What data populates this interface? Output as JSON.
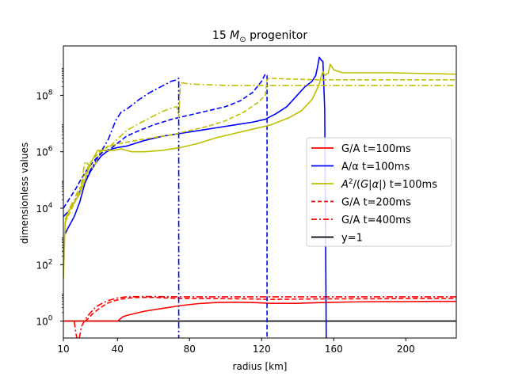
{
  "chart_data": {
    "type": "line",
    "title": "15 M☉ progenitor",
    "title_parts": {
      "prefix": "15 ",
      "italic": "M",
      "subscript": "⊙",
      "suffix": " progenitor"
    },
    "xlabel": "radius [km]",
    "ylabel": "dimensionless values",
    "xlim": [
      10,
      228
    ],
    "ylim_log10": [
      -0.6,
      9.75
    ],
    "yscale": "log",
    "x_ticks": [
      {
        "value": 10,
        "label": "10"
      },
      {
        "value": 40,
        "label": "40"
      },
      {
        "value": 80,
        "label": "80"
      },
      {
        "value": 120,
        "label": "120"
      },
      {
        "value": 160,
        "label": "160"
      },
      {
        "value": 200,
        "label": "200"
      }
    ],
    "y_ticks": [
      {
        "value": 0,
        "base": "10",
        "exp": "0"
      },
      {
        "value": 2,
        "base": "10",
        "exp": "2"
      },
      {
        "value": 4,
        "base": "10",
        "exp": "4"
      },
      {
        "value": 6,
        "base": "10",
        "exp": "6"
      },
      {
        "value": 8,
        "base": "10",
        "exp": "8"
      }
    ],
    "legend_position": "center-right",
    "legend": [
      {
        "label": "G/A t=100ms",
        "color": "#ff0000",
        "dash": "solid"
      },
      {
        "label": "A/α t=100ms",
        "color": "#0000ff",
        "dash": "solid"
      },
      {
        "label": "A²/(G|α|) t=100ms",
        "color": "#bfbf00",
        "dash": "solid",
        "math": true
      },
      {
        "label": "G/A t=200ms",
        "color": "#ff0000",
        "dash": "dashed"
      },
      {
        "label": "G/A t=400ms",
        "color": "#ff0000",
        "dash": "dashdot"
      },
      {
        "label": "y=1",
        "color": "#000000",
        "dash": "solid"
      }
    ],
    "series": [
      {
        "name": "y=1",
        "color": "#000000",
        "dash": "solid",
        "points": [
          [
            10,
            0
          ],
          [
            228,
            0
          ]
        ]
      },
      {
        "name": "G/A t=100ms",
        "color": "#ff0000",
        "dash": "solid",
        "points": [
          [
            10,
            0
          ],
          [
            40,
            0
          ],
          [
            41,
            0.05
          ],
          [
            43,
            0.15
          ],
          [
            45,
            0.2
          ],
          [
            55,
            0.35
          ],
          [
            65,
            0.45
          ],
          [
            75,
            0.55
          ],
          [
            85,
            0.62
          ],
          [
            95,
            0.66
          ],
          [
            105,
            0.67
          ],
          [
            115,
            0.66
          ],
          [
            125,
            0.63
          ],
          [
            140,
            0.63
          ],
          [
            155,
            0.66
          ],
          [
            170,
            0.68
          ],
          [
            185,
            0.69
          ],
          [
            200,
            0.69
          ],
          [
            215,
            0.7
          ],
          [
            228,
            0.7
          ]
        ]
      },
      {
        "name": "G/A t=200ms",
        "color": "#ff0000",
        "dash": "dashed",
        "points": [
          [
            22,
            0
          ],
          [
            24,
            0.1
          ],
          [
            26,
            0.25
          ],
          [
            30,
            0.45
          ],
          [
            34,
            0.62
          ],
          [
            38,
            0.72
          ],
          [
            42,
            0.78
          ],
          [
            47,
            0.82
          ],
          [
            52,
            0.84
          ],
          [
            60,
            0.84
          ],
          [
            75,
            0.8
          ],
          [
            90,
            0.8
          ],
          [
            110,
            0.79
          ],
          [
            125,
            0.77
          ],
          [
            140,
            0.78
          ],
          [
            160,
            0.79
          ],
          [
            180,
            0.79
          ],
          [
            200,
            0.8
          ],
          [
            228,
            0.8
          ]
        ]
      },
      {
        "name": "G/A t=400ms",
        "color": "#ff0000",
        "dash": "dashdot",
        "points": [
          [
            16,
            0
          ],
          [
            17,
            -0.45
          ],
          [
            18,
            -0.75
          ],
          [
            19,
            -0.55
          ],
          [
            20,
            -0.2
          ],
          [
            22,
            0.05
          ],
          [
            25,
            0.3
          ],
          [
            28,
            0.5
          ],
          [
            32,
            0.65
          ],
          [
            36,
            0.75
          ],
          [
            40,
            0.82
          ],
          [
            45,
            0.86
          ],
          [
            55,
            0.87
          ],
          [
            75,
            0.86
          ],
          [
            100,
            0.86
          ],
          [
            130,
            0.86
          ],
          [
            160,
            0.86
          ],
          [
            200,
            0.86
          ],
          [
            228,
            0.86
          ]
        ]
      },
      {
        "name": "A/α t=100ms",
        "color": "#0000ff",
        "dash": "solid",
        "points": [
          [
            11,
            3.1
          ],
          [
            13,
            3.35
          ],
          [
            16,
            3.7
          ],
          [
            19,
            4.2
          ],
          [
            22,
            4.9
          ],
          [
            25,
            5.3
          ],
          [
            28,
            5.6
          ],
          [
            31,
            5.85
          ],
          [
            34,
            6.0
          ],
          [
            37,
            6.1
          ],
          [
            40,
            6.15
          ],
          [
            45,
            6.2
          ],
          [
            50,
            6.3
          ],
          [
            55,
            6.4
          ],
          [
            65,
            6.55
          ],
          [
            75,
            6.65
          ],
          [
            85,
            6.75
          ],
          [
            95,
            6.85
          ],
          [
            105,
            6.95
          ],
          [
            115,
            7.05
          ],
          [
            122,
            7.15
          ],
          [
            128,
            7.35
          ],
          [
            134,
            7.6
          ],
          [
            139,
            7.95
          ],
          [
            144,
            8.3
          ],
          [
            148,
            8.5
          ],
          [
            150,
            8.7
          ],
          [
            151,
            9.0
          ],
          [
            152,
            9.35
          ],
          [
            153,
            9.25
          ],
          [
            154,
            9.2
          ],
          [
            155,
            7.5
          ],
          [
            156,
            -2
          ]
        ]
      },
      {
        "name": "A/α t=200ms",
        "color": "#0000ff",
        "dash": "dashed",
        "points": [
          [
            10,
            4.0
          ],
          [
            13,
            4.3
          ],
          [
            17,
            4.7
          ],
          [
            20,
            5.05
          ],
          [
            24,
            5.45
          ],
          [
            28,
            5.75
          ],
          [
            32,
            6.0
          ],
          [
            36,
            6.1
          ],
          [
            40,
            6.3
          ],
          [
            45,
            6.55
          ],
          [
            52,
            6.75
          ],
          [
            60,
            6.95
          ],
          [
            70,
            7.15
          ],
          [
            80,
            7.3
          ],
          [
            90,
            7.45
          ],
          [
            100,
            7.6
          ],
          [
            108,
            7.8
          ],
          [
            115,
            8.1
          ],
          [
            120,
            8.5
          ],
          [
            122,
            8.75
          ],
          [
            123,
            8.7
          ],
          [
            123,
            -2
          ]
        ]
      },
      {
        "name": "A/α t=400ms",
        "color": "#0000ff",
        "dash": "dashdot",
        "points": [
          [
            10,
            3.7
          ],
          [
            13,
            3.9
          ],
          [
            16,
            4.2
          ],
          [
            20,
            4.7
          ],
          [
            25,
            5.35
          ],
          [
            30,
            5.9
          ],
          [
            35,
            6.45
          ],
          [
            39,
            7.1
          ],
          [
            42,
            7.4
          ],
          [
            46,
            7.55
          ],
          [
            52,
            7.85
          ],
          [
            58,
            8.1
          ],
          [
            64,
            8.3
          ],
          [
            70,
            8.5
          ],
          [
            73,
            8.55
          ],
          [
            74,
            8.6
          ],
          [
            74,
            -2
          ]
        ]
      },
      {
        "name": "A²/(G|α|) t=100ms",
        "color": "#bfbf00",
        "dash": "solid",
        "points": [
          [
            10,
            1.5
          ],
          [
            11,
            3.5
          ],
          [
            13,
            3.9
          ],
          [
            16,
            4.2
          ],
          [
            19,
            4.5
          ],
          [
            22,
            5.0
          ],
          [
            24,
            5.4
          ],
          [
            26,
            5.7
          ],
          [
            29,
            6.05
          ],
          [
            33,
            6.05
          ],
          [
            38,
            6.05
          ],
          [
            42,
            6.1
          ],
          [
            48,
            6.0
          ],
          [
            55,
            6.0
          ],
          [
            65,
            6.05
          ],
          [
            75,
            6.15
          ],
          [
            85,
            6.3
          ],
          [
            95,
            6.5
          ],
          [
            105,
            6.65
          ],
          [
            115,
            6.8
          ],
          [
            125,
            6.95
          ],
          [
            135,
            7.2
          ],
          [
            142,
            7.45
          ],
          [
            148,
            7.85
          ],
          [
            152,
            8.4
          ],
          [
            153,
            8.65
          ],
          [
            154,
            8.85
          ],
          [
            155,
            8.7
          ],
          [
            157,
            8.8
          ],
          [
            158,
            9.1
          ],
          [
            160,
            8.9
          ],
          [
            165,
            8.8
          ],
          [
            190,
            8.8
          ],
          [
            228,
            8.75
          ]
        ]
      },
      {
        "name": "A²/(G|α|) t=200ms",
        "color": "#bfbf00",
        "dash": "dashed",
        "points": [
          [
            11,
            3.5
          ],
          [
            14,
            3.9
          ],
          [
            17,
            4.3
          ],
          [
            20,
            4.8
          ],
          [
            22,
            5.2
          ],
          [
            24,
            5.5
          ],
          [
            26,
            5.7
          ],
          [
            30,
            6.0
          ],
          [
            35,
            6.2
          ],
          [
            42,
            6.3
          ],
          [
            50,
            6.4
          ],
          [
            60,
            6.5
          ],
          [
            70,
            6.6
          ],
          [
            80,
            6.75
          ],
          [
            90,
            6.9
          ],
          [
            100,
            7.1
          ],
          [
            110,
            7.4
          ],
          [
            118,
            7.75
          ],
          [
            122,
            8.0
          ],
          [
            123,
            8.55
          ],
          [
            124,
            8.6
          ],
          [
            150,
            8.55
          ],
          [
            180,
            8.55
          ],
          [
            228,
            8.55
          ]
        ]
      },
      {
        "name": "A²/(G|α|) t=400ms",
        "color": "#bfbf00",
        "dash": "dashdot",
        "points": [
          [
            11,
            3.6
          ],
          [
            13,
            3.95
          ],
          [
            16,
            4.3
          ],
          [
            18,
            4.6
          ],
          [
            20,
            4.85
          ],
          [
            21,
            5.3
          ],
          [
            22,
            5.65
          ],
          [
            24,
            5.55
          ],
          [
            26,
            5.4
          ],
          [
            28,
            5.6
          ],
          [
            30,
            5.95
          ],
          [
            33,
            6.1
          ],
          [
            36,
            6.2
          ],
          [
            40,
            6.45
          ],
          [
            45,
            6.75
          ],
          [
            52,
            7.0
          ],
          [
            58,
            7.2
          ],
          [
            64,
            7.4
          ],
          [
            70,
            7.55
          ],
          [
            73,
            7.6
          ],
          [
            74,
            7.2
          ],
          [
            75,
            8.45
          ],
          [
            80,
            8.4
          ],
          [
            100,
            8.35
          ],
          [
            130,
            8.35
          ],
          [
            160,
            8.35
          ],
          [
            228,
            8.35
          ]
        ]
      }
    ]
  }
}
